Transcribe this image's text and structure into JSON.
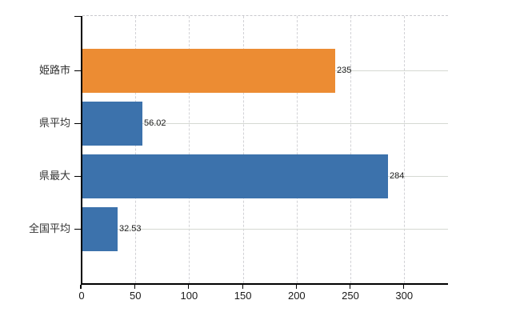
{
  "chart_data": {
    "type": "bar",
    "orientation": "horizontal",
    "title": "",
    "xlabel": "",
    "ylabel": "",
    "categories": [
      "姫路市",
      "県平均",
      "県最大",
      "全国平均"
    ],
    "values": [
      235,
      56.02,
      284,
      32.53
    ],
    "value_labels": [
      "235",
      "56.02",
      "284",
      "32.53"
    ],
    "bar_colors": [
      "#EC8C33",
      "#3C72AC",
      "#3C72AC",
      "#3C72AC"
    ],
    "x_ticks": [
      0,
      50,
      100,
      150,
      200,
      250,
      300
    ],
    "x_tick_labels": [
      "0",
      "50",
      "100",
      "150",
      "200",
      "250",
      "300"
    ],
    "xlim": [
      0,
      340
    ],
    "grid": {
      "vertical": "dashed",
      "horizontal": "solid",
      "top_border": "dashed"
    },
    "legend": "none",
    "background": "#ffffff"
  },
  "colors": {
    "axis": "#000000",
    "grid_vertical": "#d2d2d6",
    "grid_horizontal": "#d5d9d2",
    "category_label": "#333333",
    "tick_label": "#1a1a1a",
    "value_label": "#1a1a1a",
    "orange_series": "#EC8C33",
    "blue_series": "#3C72AC"
  }
}
